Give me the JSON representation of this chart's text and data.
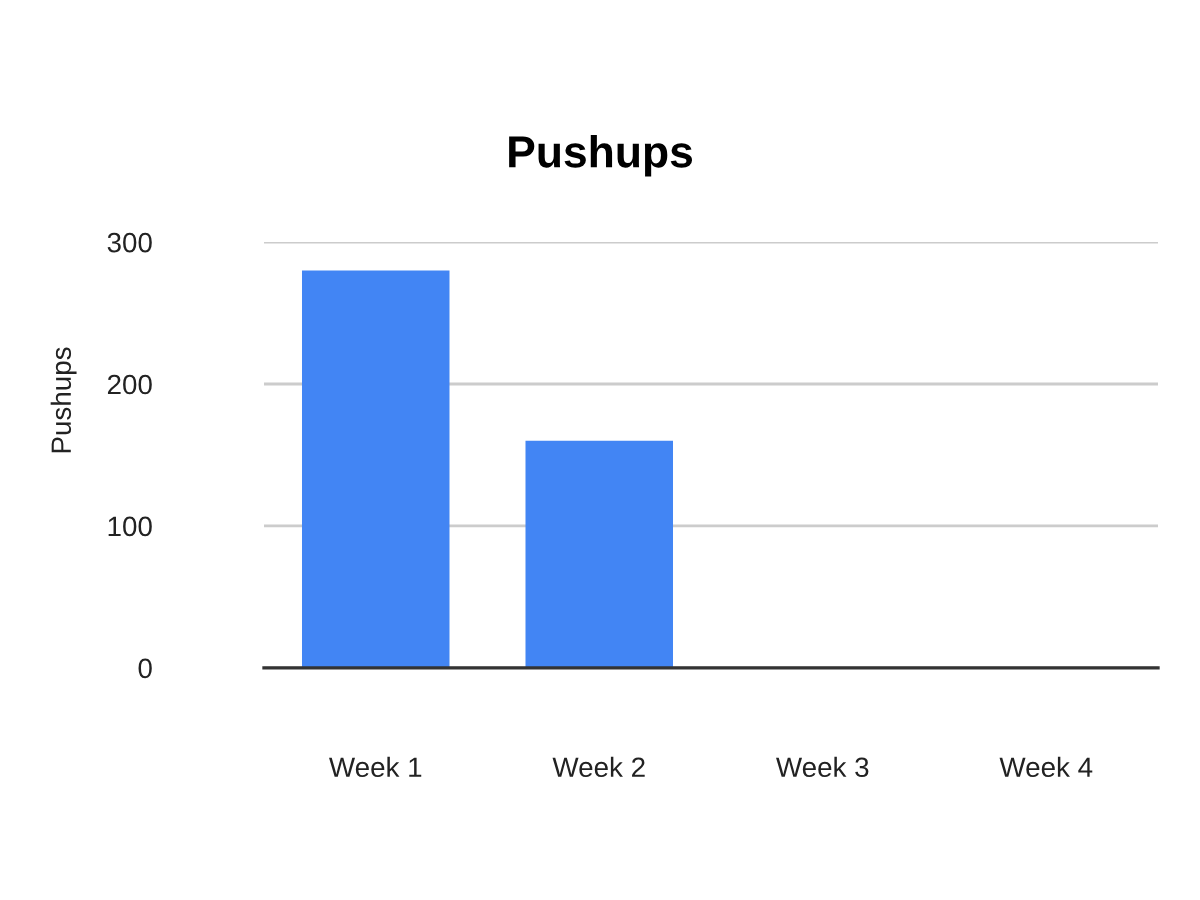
{
  "chart_data": {
    "type": "bar",
    "title": "Pushups",
    "ylabel": "Pushups",
    "categories": [
      "Week 1",
      "Week 2",
      "Week 3",
      "Week 4"
    ],
    "values": [
      280,
      160,
      0,
      0
    ],
    "color": "#4285f4",
    "ylim": [
      0,
      300
    ],
    "yticks": [
      0,
      100,
      200,
      300
    ],
    "grid": "y"
  }
}
